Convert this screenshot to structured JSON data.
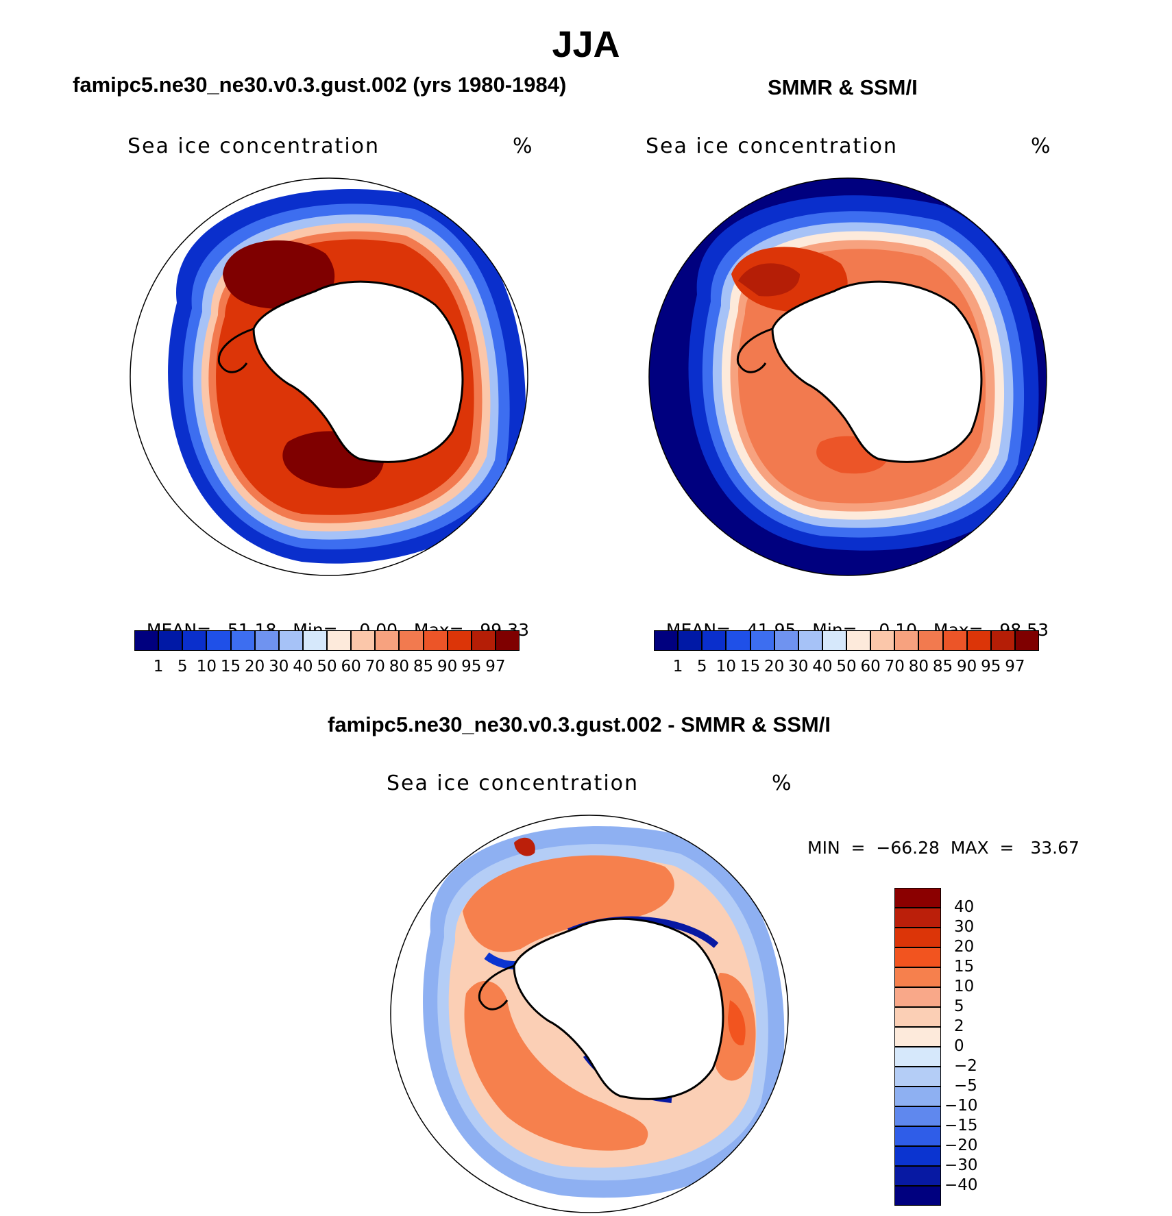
{
  "figure": {
    "title": "JJA",
    "colors": {
      "background": "#ffffff",
      "land": "#ffffff",
      "coast": "#000000"
    }
  },
  "panels": [
    {
      "id": "model",
      "title": "famipc5.ne30_ne30.v0.3.gust.002 (yrs 1980-1984)",
      "variable": "Sea ice concentration",
      "units": "%",
      "stats": {
        "mean_label": "MEAN=",
        "mean": "51.18",
        "min_label": "Min=",
        "min": "0.00",
        "max_label": "Max=",
        "max": "99.33"
      }
    },
    {
      "id": "obs",
      "title": "SMMR & SSM/I",
      "variable": "Sea ice concentration",
      "units": "%",
      "stats": {
        "mean_label": "MEAN=",
        "mean": "41.95",
        "min_label": "Min=",
        "min": "0.10",
        "max_label": "Max=",
        "max": "98.53"
      }
    },
    {
      "id": "diff",
      "title": "famipc5.ne30_ne30.v0.3.gust.002 - SMMR & SSM/I",
      "variable": "Sea ice concentration",
      "units": "%",
      "stats": {
        "min_label": "MIN",
        "min": "−66.28",
        "max_label": "MAX",
        "max": "33.67"
      }
    }
  ],
  "colorbar_concentration": {
    "levels": [
      "1",
      "5",
      "10",
      "15",
      "20",
      "30",
      "40",
      "50",
      "60",
      "70",
      "80",
      "85",
      "90",
      "95",
      "97"
    ],
    "colors": [
      "#00007f",
      "#0019a6",
      "#0a2fcc",
      "#1f50e8",
      "#3d6ef0",
      "#6f93f0",
      "#a6c2f7",
      "#d6e8fb",
      "#fdeadb",
      "#fbc7aa",
      "#f7a27f",
      "#f27a4f",
      "#ec5528",
      "#dc3508",
      "#b51e06",
      "#7f0000"
    ]
  },
  "colorbar_difference": {
    "levels": [
      "40",
      "30",
      "20",
      "15",
      "10",
      "5",
      "2",
      "0",
      "−2",
      "−5",
      "−10",
      "−15",
      "−20",
      "−30",
      "−40"
    ],
    "colors": [
      "#8b0000",
      "#bb1f0a",
      "#dc3508",
      "#f2541f",
      "#f6804d",
      "#f9a889",
      "#fbcfb5",
      "#fdeadb",
      "#d6e8fb",
      "#b4cdf6",
      "#8eb0f2",
      "#5f88ee",
      "#2f5de8",
      "#0b34d0",
      "#0719a3",
      "#00007f"
    ]
  },
  "chart_data": [
    {
      "type": "heatmap",
      "title": "famipc5.ne30_ne30.v0.3.gust.002 (yrs 1980-1984)",
      "variable": "Sea ice concentration",
      "units": "%",
      "projection": "south polar stereographic",
      "mean": 51.18,
      "min": 0.0,
      "max": 99.33,
      "levels": [
        1,
        5,
        10,
        15,
        20,
        30,
        40,
        50,
        60,
        70,
        80,
        85,
        90,
        95,
        97
      ]
    },
    {
      "type": "heatmap",
      "title": "SMMR & SSM/I",
      "variable": "Sea ice concentration",
      "units": "%",
      "projection": "south polar stereographic",
      "mean": 41.95,
      "min": 0.1,
      "max": 98.53,
      "levels": [
        1,
        5,
        10,
        15,
        20,
        30,
        40,
        50,
        60,
        70,
        80,
        85,
        90,
        95,
        97
      ]
    },
    {
      "type": "heatmap",
      "title": "famipc5.ne30_ne30.v0.3.gust.002 - SMMR & SSM/I",
      "variable": "Sea ice concentration",
      "units": "%",
      "projection": "south polar stereographic",
      "min": -66.28,
      "max": 33.67,
      "levels": [
        -40,
        -30,
        -20,
        -15,
        -10,
        -5,
        -2,
        0,
        2,
        5,
        10,
        15,
        20,
        30,
        40
      ]
    }
  ]
}
